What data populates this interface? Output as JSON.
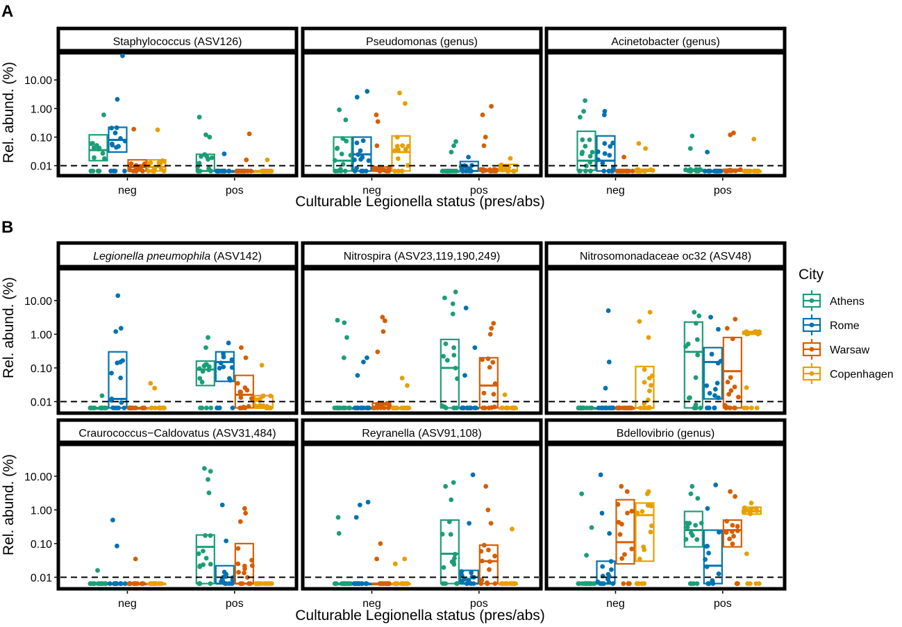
{
  "figure": {
    "section_labels": [
      "A",
      "B"
    ],
    "xlabel_a": "Culturable Legionella status (pres/abs)",
    "xlabel_b": "Culturable Legionella status (pres/abs)",
    "ylabel": "Rel. abund. (%)",
    "y_ticks": [
      "10.00",
      "1.00",
      "0.10",
      "0.01"
    ],
    "x_categories": [
      "neg",
      "pos"
    ],
    "dashed_line_value": 0.01
  },
  "legend": {
    "title": "City",
    "items": [
      {
        "label": "Athens",
        "color": "#1b9e77"
      },
      {
        "label": "Rome",
        "color": "#0072b2"
      },
      {
        "label": "Warsaw",
        "color": "#d55e00"
      },
      {
        "label": "Copenhagen",
        "color": "#e69f00"
      }
    ]
  },
  "chart_data": {
    "type": "box+jitter",
    "y_scale": "log10",
    "ylim": [
      0.005,
      80
    ],
    "y_ticks": [
      10,
      1,
      0.1,
      0.01
    ],
    "categories": [
      "neg",
      "pos"
    ],
    "cities": [
      "Athens",
      "Rome",
      "Warsaw",
      "Copenhagen"
    ],
    "panels": [
      {
        "section": "A",
        "title": "Staphylococcus (ASV126)",
        "italic_part": "",
        "boxes": {
          "neg": [
            [
              0.015,
              0.035,
              0.12
            ],
            [
              0.03,
              0.08,
              0.22
            ],
            [
              0.0065,
              0.009,
              0.016
            ],
            [
              0.0065,
              0.009,
              0.016
            ]
          ],
          "pos": [
            [
              0.0065,
              0.0065,
              0.025
            ],
            [
              0.0065,
              0.0065,
              0.0065
            ],
            [
              0.0065,
              0.0065,
              0.0065
            ],
            [
              0.0065,
              0.0065,
              0.0065
            ]
          ]
        },
        "outliers": {
          "neg": [
            [
              0.6
            ],
            [
              70,
              2.1
            ],
            [
              0.19
            ],
            [
              0.18
            ]
          ],
          "pos": [
            [
              0.5,
              0.12,
              0.1
            ],
            [
              0.026
            ],
            [
              0.13,
              0.016
            ],
            [
              0.016
            ]
          ]
        }
      },
      {
        "section": "A",
        "title": "Pseudomonas (genus)",
        "italic_part": "",
        "boxes": {
          "neg": [
            [
              0.0065,
              0.015,
              0.1
            ],
            [
              0.0065,
              0.025,
              0.1
            ],
            [
              0.0065,
              0.0065,
              0.009
            ],
            [
              0.0065,
              0.03,
              0.11
            ]
          ],
          "pos": [
            [
              0.0065,
              0.0065,
              0.0065
            ],
            [
              0.0065,
              0.0065,
              0.014
            ],
            [
              0.0065,
              0.0065,
              0.0075
            ],
            [
              0.0065,
              0.0065,
              0.011
            ]
          ]
        },
        "outliers": {
          "neg": [
            [
              0.9,
              0.4
            ],
            [
              4,
              2.5
            ],
            [
              0.6,
              0.35,
              0.05
            ],
            [
              3.5,
              1.5
            ]
          ],
          "pos": [
            [
              0.07,
              0.05,
              0.03
            ],
            [
              0.02
            ],
            [
              1.2,
              0.6,
              0.1,
              0.05
            ],
            [
              0.018
            ]
          ]
        }
      },
      {
        "section": "A",
        "title": "Acinetobacter (genus)",
        "italic_part": "",
        "boxes": {
          "neg": [
            [
              0.007,
              0.015,
              0.16
            ],
            [
              0.0065,
              0.015,
              0.11
            ],
            [
              0.0065,
              0.0065,
              0.0065
            ],
            [
              0.0065,
              0.0065,
              0.0075
            ]
          ],
          "pos": [
            [
              0.0065,
              0.0065,
              0.0075
            ],
            [
              0.0065,
              0.0065,
              0.0065
            ],
            [
              0.0065,
              0.0065,
              0.0075
            ],
            [
              0.0065,
              0.0065,
              0.0065
            ]
          ]
        },
        "outliers": {
          "neg": [
            [
              1.9,
              0.8,
              0.5
            ],
            [
              0.8,
              0.6
            ],
            [
              0.02
            ],
            [
              0.06,
              0.04
            ]
          ],
          "pos": [
            [
              0.11,
              0.04
            ],
            [
              0.03
            ],
            [
              0.14,
              0.12
            ],
            [
              0.085
            ]
          ]
        }
      },
      {
        "section": "B",
        "title": "Legionella pneumophila (ASV142)",
        "italic_part": "Legionella pneumophila",
        "boxes": {
          "neg": [
            [
              0.0065,
              0.0065,
              0.0065
            ],
            [
              0.0065,
              0.012,
              0.3
            ],
            [
              0.0065,
              0.0065,
              0.0065
            ],
            [
              0.0065,
              0.0065,
              0.0065
            ]
          ],
          "pos": [
            [
              0.03,
              0.09,
              0.16
            ],
            [
              0.04,
              0.15,
              0.3
            ],
            [
              0.0065,
              0.016,
              0.06
            ],
            [
              0.0065,
              0.0065,
              0.015
            ]
          ]
        },
        "outliers": {
          "neg": [
            [
              0.015
            ],
            [
              14,
              1.5,
              1.2
            ],
            [],
            [
              0.035,
              0.025
            ]
          ],
          "pos": [
            [
              0.8,
              0.4
            ],
            [
              0.55
            ],
            [
              0.4,
              0.2
            ],
            [
              0.12
            ]
          ]
        }
      },
      {
        "section": "B",
        "title": "Nitrospira (ASV23,119,190,249)",
        "italic_part": "",
        "boxes": {
          "neg": [
            [
              0.0065,
              0.0065,
              0.0065
            ],
            [
              0.0065,
              0.0065,
              0.0065
            ],
            [
              0.0065,
              0.0065,
              0.009
            ],
            [
              0.0065,
              0.0065,
              0.0065
            ]
          ],
          "pos": [
            [
              0.0065,
              0.1,
              0.7
            ],
            [
              0.0065,
              0.0065,
              0.0065
            ],
            [
              0.0065,
              0.03,
              0.2
            ],
            [
              0.0065,
              0.0065,
              0.0065
            ]
          ]
        },
        "outliers": {
          "neg": [
            [
              2.6,
              2.2,
              0.8,
              0.2
            ],
            [
              0.2,
              0.15,
              0.06
            ],
            [
              3.2,
              2.5,
              1.2,
              0.3
            ],
            [
              0.05,
              0.03
            ]
          ],
          "pos": [
            [
              18,
              12,
              8,
              4
            ],
            [
              6,
              0.4,
              0.06
            ],
            [
              2.1,
              1.5,
              1
            ],
            [
              0.016
            ]
          ]
        }
      },
      {
        "section": "B",
        "title": "Nitrosomonadaceae oc32 (ASV48)",
        "italic_part": "",
        "boxes": {
          "neg": [
            [
              0.0065,
              0.0065,
              0.0065
            ],
            [
              0.0065,
              0.0065,
              0.0065
            ],
            [
              0.0065,
              0.0065,
              0.0065
            ],
            [
              0.0065,
              0.0065,
              0.11
            ]
          ],
          "pos": [
            [
              0.0065,
              0.3,
              2.3
            ],
            [
              0.012,
              0.15,
              0.4
            ],
            [
              0.0065,
              0.08,
              0.8
            ],
            [
              1.0,
              1.1,
              1.2
            ]
          ]
        },
        "outliers": {
          "neg": [
            [],
            [
              5,
              0.15,
              0.025
            ],
            [],
            [
              4.5,
              2.4,
              0.8
            ]
          ],
          "pos": [
            [
              4.5,
              3.5
            ],
            [
              3.2,
              1.4
            ],
            [
              2.8,
              1.5
            ],
            [
              0.026
            ]
          ]
        }
      },
      {
        "section": "B",
        "title": "Craurococcus−Caldovatus (ASV31,484)",
        "italic_part": "",
        "boxes": {
          "neg": [
            [
              0.0065,
              0.0065,
              0.0065
            ],
            [
              0.0065,
              0.0065,
              0.0065
            ],
            [
              0.0065,
              0.0065,
              0.0065
            ],
            [
              0.0065,
              0.0065,
              0.0065
            ]
          ],
          "pos": [
            [
              0.0065,
              0.08,
              0.18
            ],
            [
              0.0065,
              0.0065,
              0.022
            ],
            [
              0.0065,
              0.0065,
              0.1
            ],
            [
              0.0065,
              0.0065,
              0.0065
            ]
          ]
        },
        "outliers": {
          "neg": [
            [
              0.016
            ],
            [
              0.5,
              0.085
            ],
            [
              0.035
            ],
            []
          ],
          "pos": [
            [
              17,
              14,
              8,
              3.2
            ],
            [
              1.4,
              0.12
            ],
            [
              1.1,
              0.8,
              0.45
            ],
            []
          ]
        }
      },
      {
        "section": "B",
        "title": "Reyranella (ASV91,108)",
        "italic_part": "",
        "boxes": {
          "neg": [
            [
              0.0065,
              0.0065,
              0.0065
            ],
            [
              0.0065,
              0.0065,
              0.0065
            ],
            [
              0.0065,
              0.0065,
              0.0065
            ],
            [
              0.0065,
              0.0065,
              0.0065
            ]
          ],
          "pos": [
            [
              0.0065,
              0.05,
              0.5
            ],
            [
              0.0065,
              0.0065,
              0.016
            ],
            [
              0.0065,
              0.03,
              0.09
            ],
            [
              0.0065,
              0.0065,
              0.0065
            ]
          ]
        },
        "outliers": {
          "neg": [
            [
              0.6,
              0.2
            ],
            [
              1.7,
              1.4,
              0.6
            ],
            [
              0.1,
              0.035
            ],
            [
              0.035,
              0.025
            ]
          ],
          "pos": [
            [
              6.5,
              5,
              2
            ],
            [
              11,
              0.4
            ],
            [
              5,
              1,
              0.4
            ],
            [
              0.27
            ]
          ]
        }
      },
      {
        "section": "B",
        "title": "Bdellovibrio (genus)",
        "italic_part": "",
        "boxes": {
          "neg": [
            [
              0.0065,
              0.0065,
              0.0065
            ],
            [
              0.0065,
              0.0065,
              0.03
            ],
            [
              0.025,
              0.11,
              2.0
            ],
            [
              0.03,
              0.7,
              1.6
            ]
          ],
          "pos": [
            [
              0.08,
              0.25,
              0.9
            ],
            [
              0.0065,
              0.022,
              0.25
            ],
            [
              0.08,
              0.25,
              0.5
            ],
            [
              0.75,
              0.9,
              1.2
            ]
          ]
        },
        "outliers": {
          "neg": [
            [
              3,
              0.3,
              0.045
            ],
            [
              11,
              0.8,
              0.2
            ],
            [
              5,
              3.5
            ],
            [
              3.5,
              3
            ]
          ],
          "pos": [
            [
              5,
              3,
              2.2
            ],
            [
              5.5,
              1.1
            ],
            [
              3.5,
              2.5
            ],
            [
              1.6,
              0.05
            ]
          ]
        }
      }
    ]
  }
}
